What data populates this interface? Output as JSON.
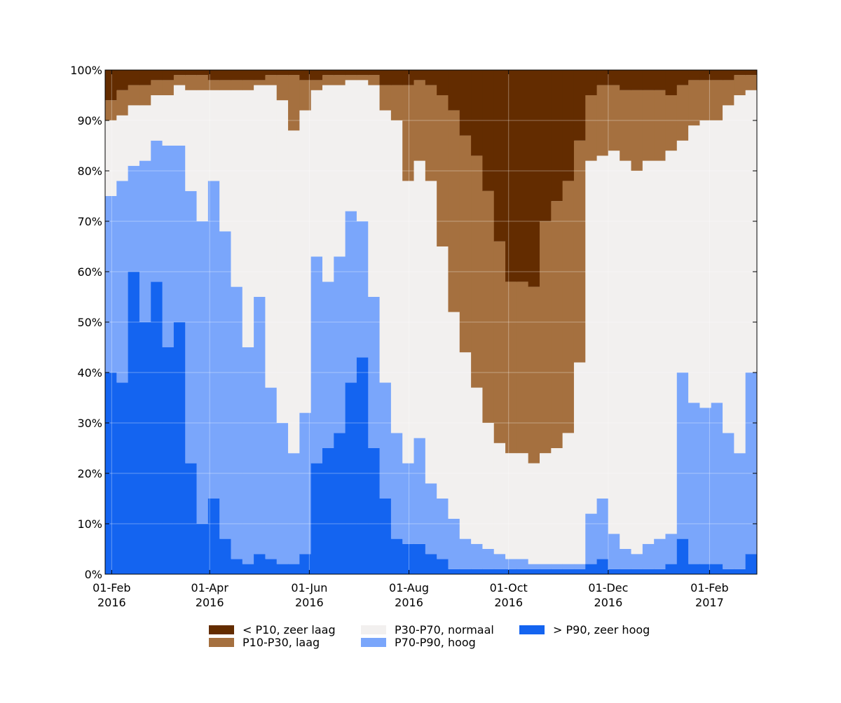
{
  "chart_data": {
    "type": "stacked_area",
    "x": [
      "2016-01-28",
      "2016-02-04",
      "2016-02-11",
      "2016-02-18",
      "2016-02-25",
      "2016-03-03",
      "2016-03-10",
      "2016-03-17",
      "2016-03-24",
      "2016-03-31",
      "2016-04-07",
      "2016-04-14",
      "2016-04-21",
      "2016-04-28",
      "2016-05-05",
      "2016-05-12",
      "2016-05-19",
      "2016-05-26",
      "2016-06-02",
      "2016-06-09",
      "2016-06-16",
      "2016-06-23",
      "2016-06-30",
      "2016-07-07",
      "2016-07-14",
      "2016-07-21",
      "2016-07-28",
      "2016-08-04",
      "2016-08-11",
      "2016-08-18",
      "2016-08-25",
      "2016-09-01",
      "2016-09-08",
      "2016-09-15",
      "2016-09-22",
      "2016-09-29",
      "2016-10-06",
      "2016-10-13",
      "2016-10-20",
      "2016-10-27",
      "2016-11-03",
      "2016-11-10",
      "2016-11-17",
      "2016-11-24",
      "2016-12-01",
      "2016-12-08",
      "2016-12-15",
      "2016-12-22",
      "2016-12-29",
      "2017-01-05",
      "2017-01-12",
      "2017-01-19",
      "2017-01-26",
      "2017-02-02",
      "2017-02-09",
      "2017-02-16",
      "2017-02-23"
    ],
    "xlim": [
      "2016-01-28",
      "2017-03-02"
    ],
    "xticks": [
      {
        "value": "2016-02-01",
        "label": [
          "01-Feb",
          "2016"
        ]
      },
      {
        "value": "2016-04-01",
        "label": [
          "01-Apr",
          "2016"
        ]
      },
      {
        "value": "2016-06-01",
        "label": [
          "01-Jun",
          "2016"
        ]
      },
      {
        "value": "2016-08-01",
        "label": [
          "01-Aug",
          "2016"
        ]
      },
      {
        "value": "2016-10-01",
        "label": [
          "01-Oct",
          "2016"
        ]
      },
      {
        "value": "2016-12-01",
        "label": [
          "01-Dec",
          "2016"
        ]
      },
      {
        "value": "2017-02-01",
        "label": [
          "01-Feb",
          "2017"
        ]
      }
    ],
    "ylim": [
      0,
      100
    ],
    "yticks": [
      {
        "value": 0,
        "label": "0%"
      },
      {
        "value": 10,
        "label": "10%"
      },
      {
        "value": 20,
        "label": "20%"
      },
      {
        "value": 30,
        "label": "30%"
      },
      {
        "value": 40,
        "label": "40%"
      },
      {
        "value": 50,
        "label": "50%"
      },
      {
        "value": 60,
        "label": "60%"
      },
      {
        "value": 70,
        "label": "70%"
      },
      {
        "value": 80,
        "label": "80%"
      },
      {
        "value": 90,
        "label": "90%"
      },
      {
        "value": 100,
        "label": "100%"
      }
    ],
    "grid": true,
    "series": [
      {
        "name": "< P10, zeer laag",
        "color": "#632c00",
        "values": [
          6,
          4,
          3,
          3,
          2,
          2,
          1,
          1,
          1,
          2,
          2,
          2,
          2,
          2,
          1,
          1,
          1,
          2,
          2,
          1,
          1,
          1,
          1,
          1,
          3,
          3,
          3,
          2,
          3,
          5,
          8,
          13,
          17,
          24,
          34,
          42,
          42,
          43,
          30,
          26,
          22,
          14,
          5,
          3,
          3,
          4,
          4,
          4,
          4,
          5,
          3,
          2,
          2,
          2,
          2,
          1,
          1
        ]
      },
      {
        "name": "P10-P30, laag",
        "color": "#a5703f",
        "values": [
          4,
          5,
          4,
          4,
          3,
          3,
          2,
          3,
          3,
          2,
          2,
          2,
          2,
          1,
          2,
          5,
          11,
          6,
          2,
          2,
          2,
          1,
          1,
          2,
          5,
          7,
          19,
          16,
          19,
          30,
          40,
          43,
          46,
          46,
          40,
          34,
          34,
          35,
          46,
          49,
          50,
          44,
          13,
          14,
          13,
          14,
          16,
          14,
          14,
          11,
          11,
          9,
          8,
          8,
          5,
          4,
          3
        ]
      },
      {
        "name": "P30-P70, normaal",
        "color": "#f2f0ef",
        "values": [
          15,
          13,
          12,
          11,
          9,
          10,
          12,
          20,
          26,
          18,
          28,
          39,
          51,
          42,
          60,
          64,
          64,
          60,
          33,
          39,
          34,
          26,
          28,
          42,
          54,
          62,
          56,
          55,
          60,
          50,
          41,
          37,
          31,
          25,
          22,
          21,
          21,
          20,
          22,
          23,
          26,
          40,
          70,
          68,
          76,
          77,
          76,
          76,
          75,
          76,
          46,
          55,
          57,
          56,
          65,
          71,
          56
        ]
      },
      {
        "name": "P70-P90, hoog",
        "color": "#7aa6fb",
        "values": [
          35,
          40,
          21,
          32,
          28,
          40,
          35,
          54,
          60,
          63,
          61,
          54,
          43,
          51,
          34,
          28,
          22,
          28,
          41,
          33,
          35,
          34,
          27,
          30,
          23,
          21,
          16,
          21,
          14,
          12,
          10,
          6,
          5,
          4,
          3,
          2,
          2,
          1,
          1,
          1,
          1,
          1,
          10,
          12,
          7,
          4,
          3,
          5,
          6,
          6,
          33,
          32,
          31,
          32,
          27,
          23,
          36
        ]
      },
      {
        "name": "> P90, zeer hoog",
        "color": "#1464f0",
        "values": [
          40,
          38,
          60,
          50,
          58,
          45,
          50,
          22,
          10,
          15,
          7,
          3,
          2,
          4,
          3,
          2,
          2,
          4,
          22,
          25,
          28,
          38,
          43,
          25,
          15,
          7,
          6,
          6,
          4,
          3,
          1,
          1,
          1,
          1,
          1,
          1,
          1,
          1,
          1,
          1,
          1,
          1,
          2,
          3,
          1,
          1,
          1,
          1,
          1,
          2,
          7,
          2,
          2,
          2,
          1,
          1,
          4
        ]
      }
    ]
  }
}
